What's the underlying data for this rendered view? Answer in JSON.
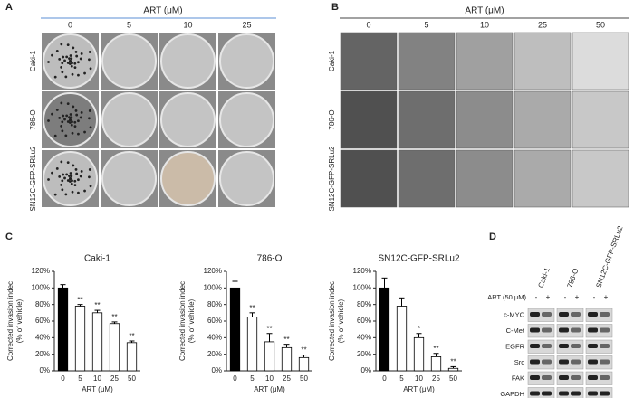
{
  "panels": {
    "A": {
      "label": "A",
      "header": "ART (μM)",
      "columns": [
        0,
        5,
        10,
        25
      ],
      "rows": [
        "Caki-1",
        "786-O",
        "SN12C-GFP-SRLu2"
      ]
    },
    "B": {
      "label": "B",
      "header": "ART (μM)",
      "columns": [
        0,
        5,
        10,
        25,
        50
      ],
      "rows": [
        "Caki-1",
        "786-O",
        "SN12C-GFP-SRLu2"
      ]
    },
    "C": {
      "label": "C"
    },
    "D": {
      "label": "D",
      "columns": [
        "Caki-1",
        "786-O",
        "SN12C-GFP-SRLu2"
      ],
      "treatment": "ART (50 μM)",
      "signs": [
        "-",
        "+",
        "-",
        "+",
        "-",
        "+"
      ],
      "rows": [
        "c-MYC",
        "C-Met",
        "EGFR",
        "Src",
        "FAK",
        "GAPDH"
      ]
    }
  },
  "chart_data": [
    {
      "type": "bar",
      "title": "Caki-1",
      "y_label": [
        "Corrected invasion indec",
        "(% of vehicle)"
      ],
      "x_label": "ART (μM)",
      "categories": [
        0,
        5,
        10,
        25,
        50
      ],
      "values": [
        100,
        78,
        70,
        57,
        34
      ],
      "errors": [
        4,
        2,
        3,
        2,
        2
      ],
      "colors": [
        "#000000",
        "#ffffff",
        "#ffffff",
        "#ffffff",
        "#ffffff"
      ],
      "significance": [
        null,
        "**",
        "**",
        "**",
        "**"
      ],
      "ylim": [
        0,
        120
      ],
      "yticks": [
        {
          "value": 0,
          "label": "0%"
        },
        {
          "value": 20,
          "label": "20%"
        },
        {
          "value": 40,
          "label": "40%"
        },
        {
          "value": 60,
          "label": "60%"
        },
        {
          "value": 80,
          "label": "80%"
        },
        {
          "value": 100,
          "label": "100%"
        },
        {
          "value": 120,
          "label": "120%"
        }
      ]
    },
    {
      "type": "bar",
      "title": "786-O",
      "y_label": [
        "Corrected invasion indec",
        "(% of vehicle)"
      ],
      "x_label": "ART (μM)",
      "categories": [
        0,
        5,
        10,
        25,
        50
      ],
      "values": [
        100,
        65,
        35,
        28,
        16
      ],
      "errors": [
        8,
        5,
        10,
        4,
        3
      ],
      "colors": [
        "#000000",
        "#ffffff",
        "#ffffff",
        "#ffffff",
        "#ffffff"
      ],
      "significance": [
        null,
        "**",
        "**",
        "**",
        "**"
      ],
      "ylim": [
        0,
        120
      ],
      "yticks": [
        {
          "value": 0,
          "label": "0%"
        },
        {
          "value": 20,
          "label": "20%"
        },
        {
          "value": 40,
          "label": "40%"
        },
        {
          "value": 60,
          "label": "60%"
        },
        {
          "value": 80,
          "label": "80%"
        },
        {
          "value": 100,
          "label": "100%"
        },
        {
          "value": 120,
          "label": "120%"
        }
      ]
    },
    {
      "type": "bar",
      "title": "SN12C-GFP-SRLu2",
      "y_label": [
        "Corrected invasion indec",
        "(% of vehicle)"
      ],
      "x_label": "ART (μM)",
      "categories": [
        0,
        5,
        10,
        25,
        50
      ],
      "values": [
        100,
        78,
        40,
        17,
        3
      ],
      "errors": [
        12,
        10,
        5,
        4,
        2
      ],
      "colors": [
        "#000000",
        "#ffffff",
        "#ffffff",
        "#ffffff",
        "#ffffff"
      ],
      "significance": [
        null,
        null,
        "*",
        "**",
        "**"
      ],
      "ylim": [
        0,
        120
      ],
      "yticks": [
        {
          "value": 0,
          "label": "0%"
        },
        {
          "value": 20,
          "label": "20%"
        },
        {
          "value": 40,
          "label": "40%"
        },
        {
          "value": 60,
          "label": "60%"
        },
        {
          "value": 80,
          "label": "80%"
        },
        {
          "value": 100,
          "label": "100%"
        },
        {
          "value": 120,
          "label": "120%"
        }
      ]
    }
  ]
}
